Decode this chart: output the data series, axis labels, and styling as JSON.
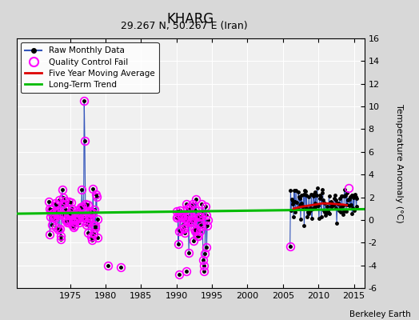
{
  "title": "KHARG",
  "subtitle": "29.267 N, 50.267 E (Iran)",
  "ylabel_right": "Temperature Anomaly (°C)",
  "credit": "Berkeley Earth",
  "xlim": [
    1967.5,
    2016.5
  ],
  "ylim": [
    -6,
    16
  ],
  "yticks": [
    -6,
    -4,
    -2,
    0,
    2,
    4,
    6,
    8,
    10,
    12,
    14,
    16
  ],
  "xticks": [
    1975,
    1980,
    1985,
    1990,
    1995,
    2000,
    2005,
    2010,
    2015
  ],
  "fig_bg": "#d8d8d8",
  "plot_bg": "#f0f0f0",
  "grid_color": "#ffffff",
  "raw_color": "#3355bb",
  "qc_color": "#ff00ff",
  "ma_color": "#dd0000",
  "trend_color": "#00bb00",
  "trend_x": [
    1967.5,
    2016.5
  ],
  "trend_y": [
    0.55,
    0.95
  ],
  "ma_x": [
    2006.5,
    2007.5,
    2008.5,
    2009.5,
    2010.5,
    2011.5,
    2012.5,
    2013.5,
    2014.0
  ],
  "ma_y": [
    1.0,
    1.15,
    1.25,
    1.35,
    1.45,
    1.45,
    1.4,
    1.35,
    1.3
  ],
  "cluster1_seed": 10,
  "cluster1_start": 1972.0,
  "cluster1_end": 1979.0,
  "cluster1_mean": 0.3,
  "cluster1_std": 1.0,
  "spike1_idx": 60,
  "spike1_val": 10.5,
  "spike2_idx": 61,
  "spike2_val": 7.0,
  "isolated_qc_t": [
    1980.3,
    1982.2
  ],
  "isolated_qc_v": [
    -4.0,
    -4.2
  ],
  "cluster2_seed": 20,
  "cluster2_start": 1990.0,
  "cluster2_end": 1994.5,
  "cluster2_mean": 0.0,
  "cluster2_std": 0.9,
  "isolated_qc2_t": [
    1990.4,
    1991.4
  ],
  "isolated_qc2_v": [
    -4.8,
    -4.5
  ],
  "cluster3_seed": 30,
  "cluster3_start": 2006.0,
  "cluster3_end": 2015.5,
  "cluster3_mean": 1.5,
  "cluster3_std": 0.7,
  "qc3_t": [
    2006.0,
    2014.3
  ],
  "qc3_v": [
    -2.3,
    2.8
  ]
}
